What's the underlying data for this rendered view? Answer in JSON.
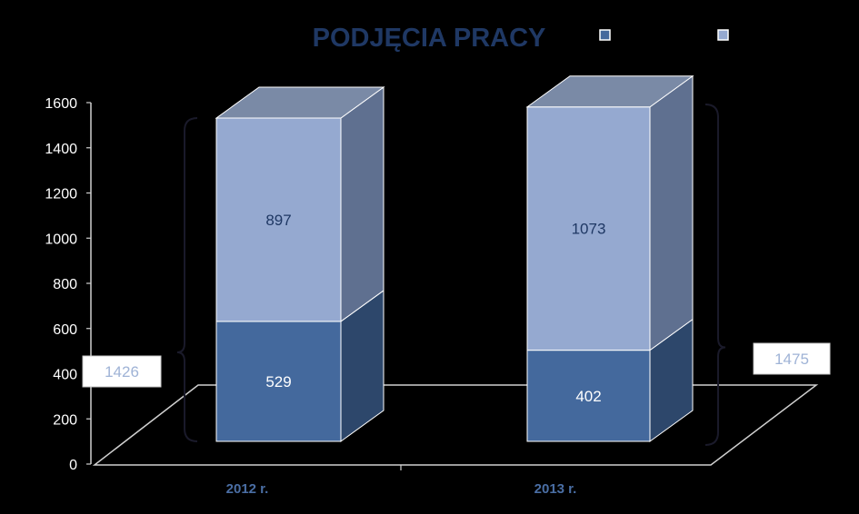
{
  "colors": {
    "background": "#000000",
    "title": "#1f3864",
    "series1_front": "#44699d",
    "series1_side": "#2d476b",
    "series2_front": "#95a9d0",
    "series2_side": "#5f7090",
    "series2_top": "#7a8aa6",
    "axis": "#d0d0d0",
    "data_label_dark": "#1f3864",
    "data_label_light": "#ffffff",
    "category_label": "#4a6ea4",
    "total_box_text": "#9fb3d6",
    "legend_series1": "#44699d",
    "legend_series2": "#95a9d0"
  },
  "chart_data": {
    "type": "bar",
    "stacked": true,
    "three_d": true,
    "title": "PODJĘCIA PRACY",
    "categories": [
      "2012 r.",
      "2013 r."
    ],
    "series": [
      {
        "values": [
          529,
          402
        ]
      },
      {
        "values": [
          897,
          1073
        ]
      }
    ],
    "totals": [
      "1426",
      "1475"
    ],
    "ylim": [
      0,
      1600
    ],
    "yticks": [
      "0",
      "200",
      "400",
      "600",
      "800",
      "1000",
      "1200",
      "1400",
      "1600"
    ],
    "legend_placement": "top-right",
    "grid": false
  }
}
